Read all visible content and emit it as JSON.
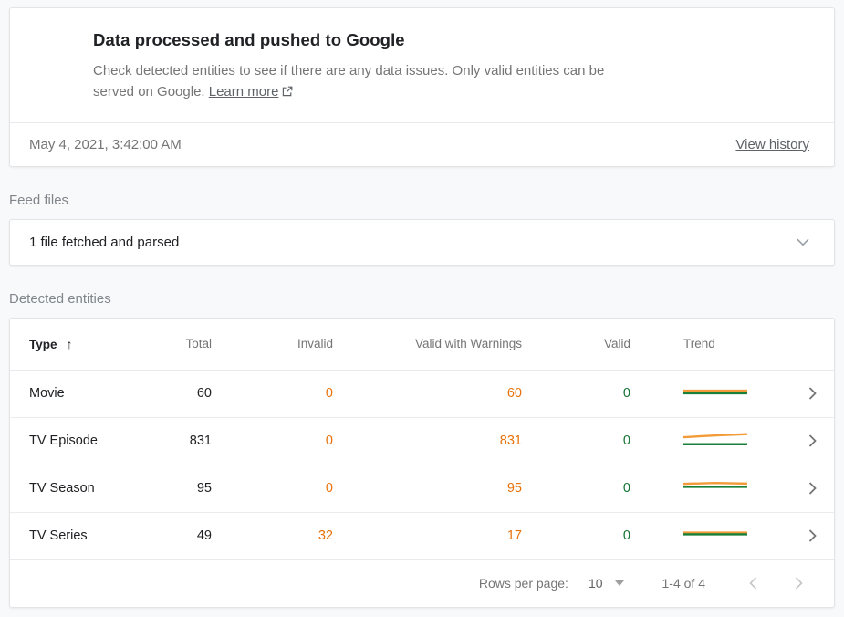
{
  "status_card": {
    "title": "Data processed and pushed to Google",
    "description": "Check detected entities to see if there are any data issues. Only valid entities can be served on Google.",
    "learn_more_label": "Learn more",
    "timestamp": "May 4, 2021, 3:42:00 AM",
    "view_history_label": "View history"
  },
  "feed_files": {
    "section_label": "Feed files",
    "summary": "1 file fetched and parsed"
  },
  "detected_entities": {
    "section_label": "Detected entities",
    "columns": {
      "type": "Type",
      "total": "Total",
      "invalid": "Invalid",
      "valid_with_warnings": "Valid with Warnings",
      "valid": "Valid",
      "trend": "Trend"
    },
    "sort": {
      "column": "Type",
      "direction": "ascending"
    },
    "rows": [
      {
        "type": "Movie",
        "total": "60",
        "invalid": "0",
        "valid_with_warnings": "60",
        "valid": "0",
        "trend": [
          {
            "color": "green",
            "points": [
              [
                0,
                0.58
              ],
              [
                1,
                0.58
              ]
            ]
          },
          {
            "color": "orange",
            "points": [
              [
                0,
                0.46
              ],
              [
                1,
                0.46
              ]
            ]
          }
        ]
      },
      {
        "type": "TV Episode",
        "total": "831",
        "invalid": "0",
        "valid_with_warnings": "831",
        "valid": "0",
        "trend": [
          {
            "color": "green",
            "points": [
              [
                0,
                0.74
              ],
              [
                1,
                0.74
              ]
            ]
          },
          {
            "color": "orange",
            "points": [
              [
                0,
                0.42
              ],
              [
                0.55,
                0.33
              ],
              [
                1,
                0.28
              ]
            ]
          }
        ]
      },
      {
        "type": "TV Season",
        "total": "95",
        "invalid": "0",
        "valid_with_warnings": "95",
        "valid": "0",
        "trend": [
          {
            "color": "orange",
            "points": [
              [
                0,
                0.38
              ],
              [
                0.5,
                0.34
              ],
              [
                1,
                0.37
              ]
            ]
          },
          {
            "color": "green",
            "points": [
              [
                0,
                0.52
              ],
              [
                1,
                0.52
              ]
            ]
          }
        ]
      },
      {
        "type": "TV Series",
        "total": "49",
        "invalid": "32",
        "valid_with_warnings": "17",
        "valid": "0",
        "trend": [
          {
            "color": "orange",
            "points": [
              [
                0,
                0.44
              ],
              [
                1,
                0.44
              ]
            ]
          },
          {
            "color": "green",
            "points": [
              [
                0,
                0.52
              ],
              [
                1,
                0.52
              ]
            ]
          }
        ]
      }
    ],
    "pagination": {
      "rows_per_page_label": "Rows per page:",
      "rows_per_page_value": "10",
      "range_label": "1-4 of 4"
    }
  },
  "colors": {
    "success_green": "#188038",
    "trend_green": "#188038",
    "trend_orange": "#f29b38",
    "warning_orange": "#e8710a",
    "valid_green": "#137333"
  }
}
